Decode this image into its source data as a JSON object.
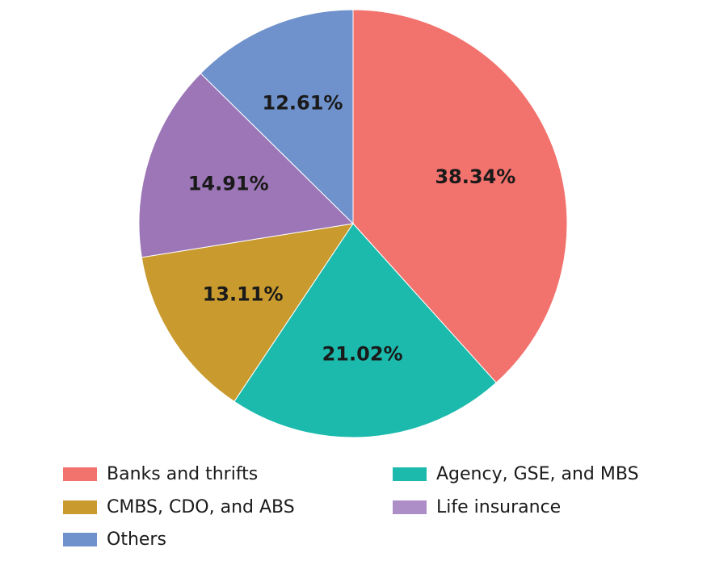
{
  "chart_data": {
    "type": "pie",
    "title": "",
    "start_angle_deg": 0,
    "direction": "clockwise",
    "slices": [
      {
        "label": "Banks and thrifts",
        "value": 38.34,
        "display": "38.34%",
        "color": "#f2726d"
      },
      {
        "label": "Agency, GSE, and MBS",
        "value": 21.02,
        "display": "21.02%",
        "color": "#1bbaad"
      },
      {
        "label": "CMBS, CDO, and ABS",
        "value": 13.11,
        "display": "13.11%",
        "color": "#c99a2e"
      },
      {
        "label": "Life insurance",
        "value": 14.91,
        "display": "14.91%",
        "color": "#9c76b6"
      },
      {
        "label": "Others",
        "value": 12.61,
        "display": "12.61%",
        "color": "#6f92cc"
      }
    ],
    "legend": {
      "position": "bottom",
      "items": [
        {
          "label": "Banks and thrifts",
          "color": "#f2726d"
        },
        {
          "label": "Agency, GSE, and MBS",
          "color": "#1bbaad"
        },
        {
          "label": "CMBS, CDO, and ABS",
          "color": "#c99a2e"
        },
        {
          "label": "Life insurance",
          "color": "#ad8ec6"
        },
        {
          "label": "Others",
          "color": "#6f92cc"
        }
      ]
    }
  }
}
